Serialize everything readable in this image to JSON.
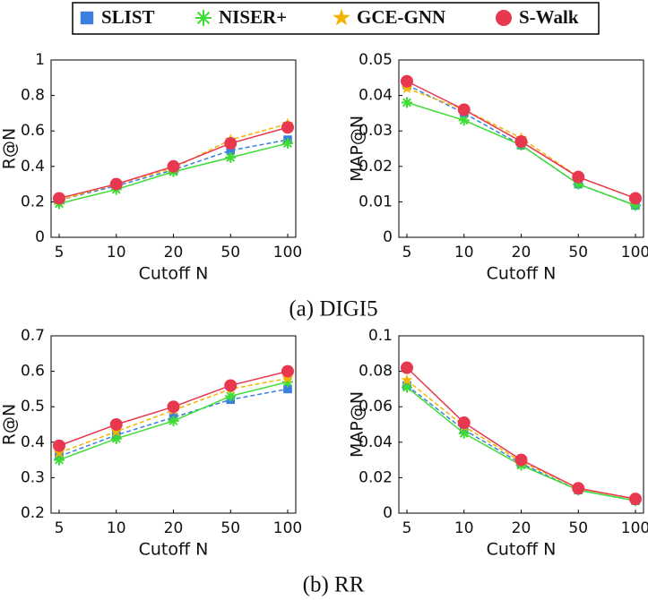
{
  "legend": [
    {
      "name": "SLIST",
      "color": "#3b7fe0",
      "marker": "square",
      "dash": true
    },
    {
      "name": "NISER+",
      "color": "#3fdc36",
      "marker": "asterisk",
      "dash": false
    },
    {
      "name": "GCE-GNN",
      "color": "#f5b400",
      "marker": "star",
      "dash": true
    },
    {
      "name": "S-Walk",
      "color": "#e8384f",
      "marker": "circle",
      "dash": false
    }
  ],
  "captions": [
    "(a) DIGI5",
    "(b) RR"
  ],
  "chart_data": [
    {
      "type": "line",
      "xlabel": "Cutoff N",
      "ylabel": "R@N",
      "categories": [
        "5",
        "10",
        "20",
        "50",
        "100"
      ],
      "ylim": [
        0,
        1
      ],
      "yticks": [
        0,
        0.2,
        0.4,
        0.6,
        0.8,
        1
      ],
      "series": [
        {
          "values": [
            0.21,
            0.29,
            0.38,
            0.49,
            0.55
          ]
        },
        {
          "values": [
            0.19,
            0.27,
            0.37,
            0.45,
            0.53
          ]
        },
        {
          "values": [
            0.21,
            0.3,
            0.39,
            0.55,
            0.64
          ]
        },
        {
          "values": [
            0.22,
            0.3,
            0.4,
            0.53,
            0.62
          ]
        }
      ]
    },
    {
      "type": "line",
      "xlabel": "Cutoff N",
      "ylabel": "MAP@N",
      "categories": [
        "5",
        "10",
        "20",
        "50",
        "100"
      ],
      "ylim": [
        0,
        0.05
      ],
      "yticks": [
        0,
        0.01,
        0.02,
        0.03,
        0.04,
        0.05
      ],
      "series": [
        {
          "values": [
            0.043,
            0.035,
            0.026,
            0.015,
            0.009
          ]
        },
        {
          "values": [
            0.038,
            0.033,
            0.026,
            0.015,
            0.009
          ]
        },
        {
          "values": [
            0.042,
            0.036,
            0.028,
            0.017,
            0.011
          ]
        },
        {
          "values": [
            0.044,
            0.036,
            0.027,
            0.017,
            0.011
          ]
        }
      ]
    },
    {
      "type": "line",
      "xlabel": "Cutoff N",
      "ylabel": "R@N",
      "categories": [
        "5",
        "10",
        "20",
        "50",
        "100"
      ],
      "ylim": [
        0.2,
        0.7
      ],
      "yticks": [
        0.2,
        0.3,
        0.4,
        0.5,
        0.6,
        0.7
      ],
      "series": [
        {
          "values": [
            0.36,
            0.42,
            0.47,
            0.52,
            0.55
          ]
        },
        {
          "values": [
            0.35,
            0.41,
            0.46,
            0.53,
            0.57
          ]
        },
        {
          "values": [
            0.37,
            0.43,
            0.49,
            0.55,
            0.58
          ]
        },
        {
          "values": [
            0.39,
            0.45,
            0.5,
            0.56,
            0.6
          ]
        }
      ]
    },
    {
      "type": "line",
      "xlabel": "Cutoff N",
      "ylabel": "MAP@N",
      "categories": [
        "5",
        "10",
        "20",
        "50",
        "100"
      ],
      "ylim": [
        0,
        0.1
      ],
      "yticks": [
        0,
        0.02,
        0.04,
        0.06,
        0.08,
        0.1
      ],
      "series": [
        {
          "values": [
            0.072,
            0.047,
            0.028,
            0.013,
            0.007
          ]
        },
        {
          "values": [
            0.071,
            0.045,
            0.027,
            0.013,
            0.007
          ]
        },
        {
          "values": [
            0.075,
            0.049,
            0.029,
            0.014,
            0.008
          ]
        },
        {
          "values": [
            0.082,
            0.051,
            0.03,
            0.014,
            0.008
          ]
        }
      ]
    }
  ]
}
